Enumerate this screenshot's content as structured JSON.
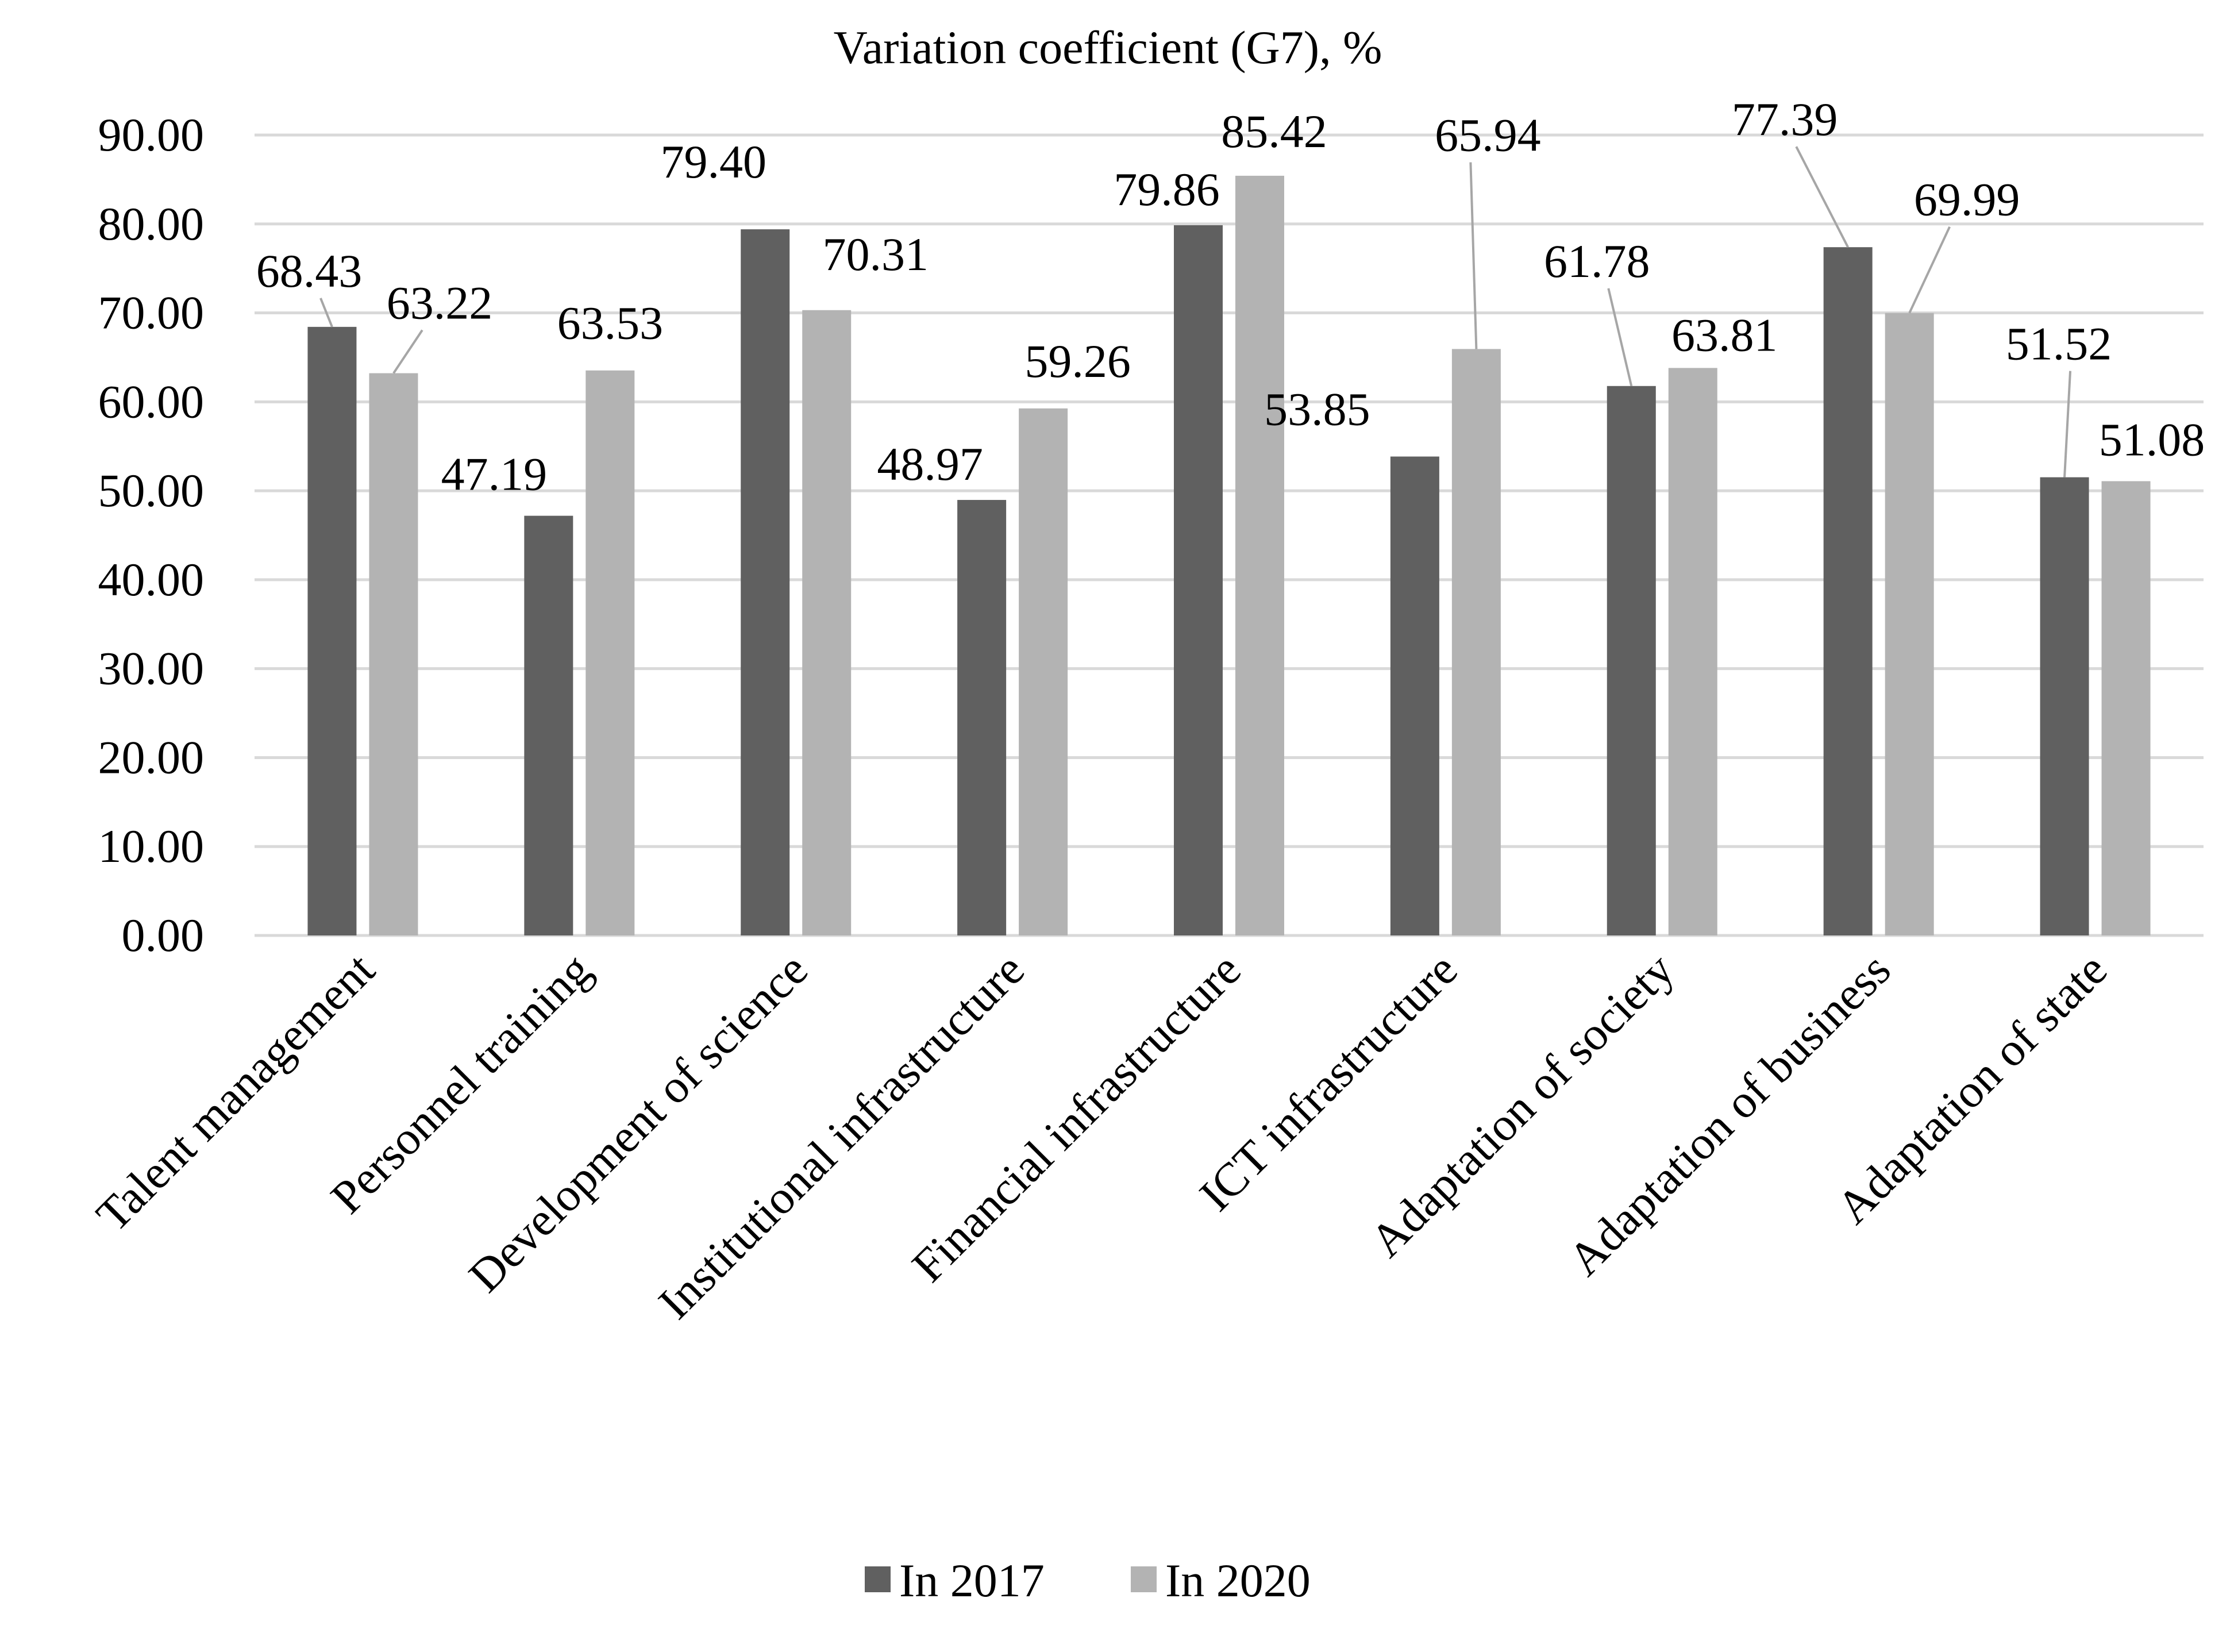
{
  "chart_data": {
    "type": "bar",
    "title": "Variation coefficient (G7), %",
    "xlabel": "",
    "ylabel": "",
    "ylim": [
      0,
      90
    ],
    "yticks": [
      "0.00",
      "10.00",
      "20.00",
      "30.00",
      "40.00",
      "50.00",
      "60.00",
      "70.00",
      "80.00",
      "90.00"
    ],
    "categories": [
      "Talent management",
      "Personnel training",
      "Development of science",
      "Institutional infrastructure",
      "Financial infrastructure",
      "ICT infrastructure",
      "Adaptation of society",
      "Adaptation of business",
      "Adaptation of state"
    ],
    "series": [
      {
        "name": "In 2017",
        "color": "#606060",
        "values": [
          68.43,
          47.19,
          79.4,
          48.97,
          79.86,
          53.85,
          61.78,
          77.39,
          51.52
        ],
        "labels": [
          "68.43",
          "47.19",
          "79.40",
          "48.97",
          "79.86",
          "53.85",
          "61.78",
          "77.39",
          "51.52"
        ]
      },
      {
        "name": "In 2020",
        "color": "#b3b3b3",
        "values": [
          63.22,
          63.53,
          70.31,
          59.26,
          85.42,
          65.94,
          63.81,
          69.99,
          51.08
        ],
        "labels": [
          "63.22",
          "63.53",
          "70.31",
          "59.26",
          "85.42",
          "65.94",
          "63.81",
          "69.99",
          "51.08"
        ]
      }
    ],
    "grid": true,
    "legend_position": "bottom"
  }
}
